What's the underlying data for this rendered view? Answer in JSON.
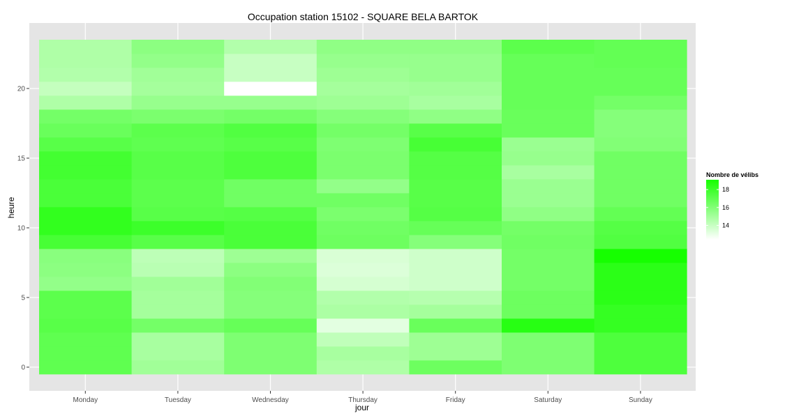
{
  "chart_data": {
    "type": "heatmap",
    "title": "Occupation station 15102 - SQUARE BELA BARTOK",
    "xlabel": "jour",
    "ylabel": "heure",
    "x_categories": [
      "Monday",
      "Tuesday",
      "Wednesday",
      "Thursday",
      "Friday",
      "Saturday",
      "Sunday"
    ],
    "y_hours": [
      0,
      1,
      2,
      3,
      4,
      5,
      6,
      7,
      8,
      9,
      10,
      11,
      12,
      13,
      14,
      15,
      16,
      17,
      18,
      19,
      20,
      21,
      22,
      23
    ],
    "y_ticks": [
      0,
      5,
      10,
      15,
      20
    ],
    "values": [
      [
        17.0,
        15.1,
        16.1,
        14.7,
        16.6,
        16.1,
        17.5
      ],
      [
        17.0,
        14.9,
        16.1,
        14.9,
        15.2,
        16.1,
        17.5
      ],
      [
        17.0,
        14.9,
        16.1,
        14.2,
        15.2,
        16.1,
        17.5
      ],
      [
        17.2,
        16.4,
        16.8,
        13.2,
        16.7,
        18.6,
        18.2
      ],
      [
        17.1,
        15.0,
        15.9,
        14.8,
        15.0,
        16.6,
        18.2
      ],
      [
        17.1,
        15.0,
        15.9,
        14.6,
        14.5,
        16.6,
        18.5
      ],
      [
        15.5,
        15.1,
        16.0,
        13.6,
        13.8,
        16.4,
        18.5
      ],
      [
        15.7,
        14.4,
        15.7,
        13.4,
        13.8,
        16.4,
        18.5
      ],
      [
        15.8,
        14.3,
        15.2,
        13.5,
        13.8,
        16.4,
        19.6
      ],
      [
        17.7,
        17.2,
        17.6,
        16.6,
        15.9,
        16.5,
        17.4
      ],
      [
        18.3,
        18.0,
        17.6,
        16.5,
        16.8,
        16.4,
        17.3
      ],
      [
        18.3,
        17.2,
        17.3,
        16.2,
        17.3,
        15.6,
        16.9
      ],
      [
        17.6,
        17.1,
        16.5,
        16.5,
        17.2,
        15.3,
        16.5
      ],
      [
        17.6,
        17.1,
        16.5,
        15.5,
        17.2,
        15.3,
        16.5
      ],
      [
        17.8,
        17.2,
        17.5,
        16.2,
        17.3,
        14.9,
        16.5
      ],
      [
        17.8,
        17.2,
        17.5,
        16.2,
        17.3,
        15.4,
        16.5
      ],
      [
        17.2,
        17.0,
        17.2,
        16.1,
        17.7,
        15.3,
        16.0
      ],
      [
        16.7,
        17.1,
        17.4,
        16.4,
        17.2,
        16.7,
        15.9
      ],
      [
        16.4,
        16.2,
        16.4,
        15.9,
        15.6,
        16.7,
        15.9
      ],
      [
        14.7,
        15.4,
        15.4,
        15.2,
        14.9,
        16.8,
        16.4
      ],
      [
        14.1,
        15.0,
        11.5,
        15.0,
        15.1,
        16.8,
        16.8
      ],
      [
        14.6,
        15.1,
        14.0,
        15.2,
        15.4,
        16.8,
        16.8
      ],
      [
        14.7,
        15.5,
        14.0,
        15.4,
        15.4,
        16.8,
        16.9
      ],
      [
        14.7,
        15.7,
        14.6,
        15.6,
        15.6,
        17.1,
        16.9
      ]
    ],
    "color_scale": {
      "low": "#ffffff",
      "high": "#16ff00",
      "min": 12.4,
      "max": 19.1
    },
    "legend": {
      "title": "Nombre de vélibs",
      "ticks": [
        14,
        16,
        18
      ],
      "placement": "right"
    },
    "ylim": [
      -0.5,
      23.5
    ],
    "grid": true,
    "panel_background": "#e5e5e5",
    "grid_color": "#ffffff"
  }
}
